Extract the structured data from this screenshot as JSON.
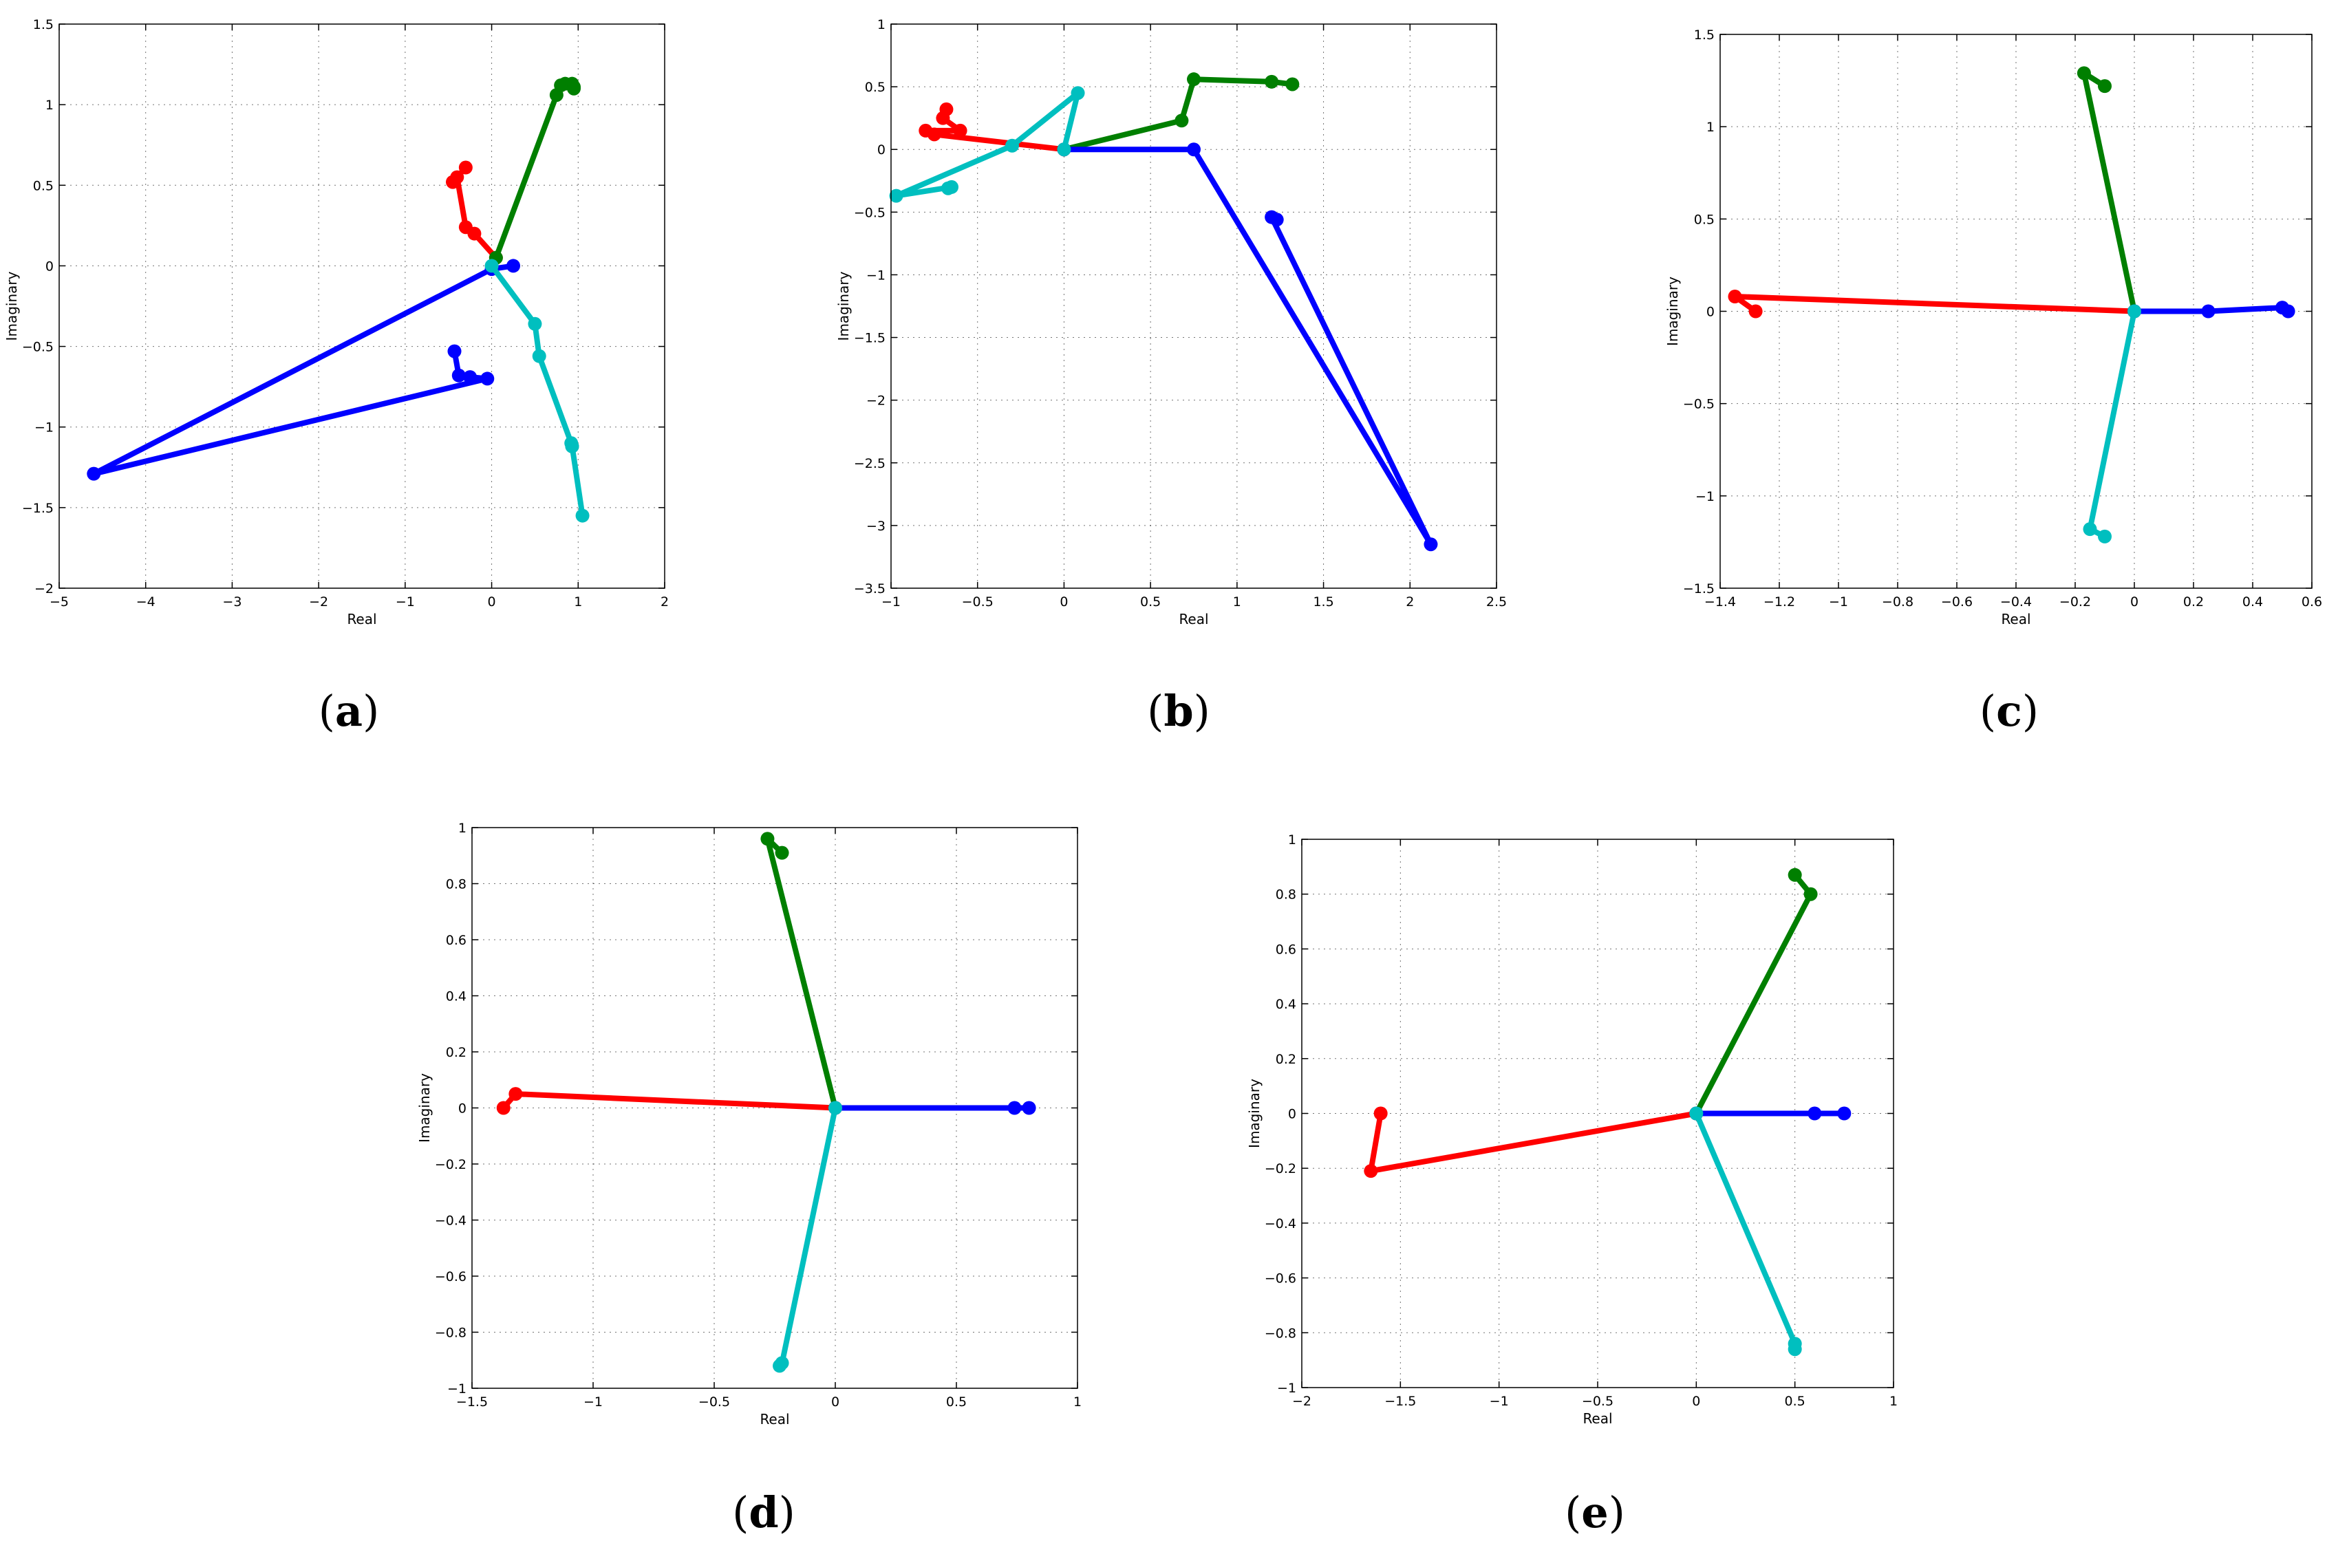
{
  "chart_data": [
    {
      "type": "line",
      "panel_label": "a",
      "xlabel": "Real",
      "ylabel": "Imaginary",
      "xlim": [
        -5,
        2
      ],
      "ylim": [
        -2,
        1.5
      ],
      "xticks": [
        -5,
        -4,
        -3,
        -2,
        -1,
        0,
        1,
        2
      ],
      "yticks": [
        -2,
        -1.5,
        -1,
        -0.5,
        0,
        0.5,
        1,
        1.5
      ],
      "xtick_labels": [
        "−5",
        "−4",
        "−3",
        "−2",
        "−1",
        "0",
        "1",
        "2"
      ],
      "ytick_labels": [
        "−2",
        "−1.5",
        "−1",
        "−0.5",
        "0",
        "0.5",
        "1",
        "1.5"
      ],
      "grid": true,
      "series": [
        {
          "name": "red",
          "color": "#ff0000",
          "x": [
            0.05,
            -0.2,
            -0.3,
            -0.4,
            -0.45,
            -0.3
          ],
          "y": [
            0.05,
            0.2,
            0.24,
            0.55,
            0.52,
            0.61
          ]
        },
        {
          "name": "green",
          "color": "#007f00",
          "x": [
            0.05,
            0.75,
            0.8,
            0.85,
            0.93,
            0.95,
            0.95
          ],
          "y": [
            0.05,
            1.06,
            1.12,
            1.13,
            1.13,
            1.11,
            1.1
          ]
        },
        {
          "name": "blue",
          "color": "#0000ff",
          "x": [
            0.25,
            0.0,
            -4.6,
            -0.05,
            -0.25,
            -0.38,
            -0.43
          ],
          "y": [
            0.0,
            -0.02,
            -1.29,
            -0.7,
            -0.69,
            -0.68,
            -0.53
          ]
        },
        {
          "name": "cyan",
          "color": "#00bfbf",
          "x": [
            0.0,
            0.5,
            0.55,
            0.92,
            0.93,
            1.05,
            0.93
          ],
          "y": [
            0.0,
            -0.36,
            -0.56,
            -1.1,
            -1.12,
            -1.55,
            -1.12
          ]
        }
      ]
    },
    {
      "type": "line",
      "panel_label": "b",
      "xlabel": "Real",
      "ylabel": "Imaginary",
      "xlim": [
        -1,
        2.5
      ],
      "ylim": [
        -3.5,
        1
      ],
      "xticks": [
        -1,
        -0.5,
        0,
        0.5,
        1,
        1.5,
        2,
        2.5
      ],
      "yticks": [
        -3.5,
        -3,
        -2.5,
        -2,
        -1.5,
        -1,
        -0.5,
        0,
        0.5,
        1
      ],
      "xtick_labels": [
        "−1",
        "−0.5",
        "0",
        "0.5",
        "1",
        "1.5",
        "2",
        "2.5"
      ],
      "ytick_labels": [
        "−3.5",
        "−3",
        "−2.5",
        "−2",
        "−1.5",
        "−1",
        "−0.5",
        "0",
        "0.5",
        "1"
      ],
      "grid": true,
      "series": [
        {
          "name": "red",
          "color": "#ff0000",
          "x": [
            0.0,
            -0.75,
            -0.8,
            -0.6,
            -0.7,
            -0.68
          ],
          "y": [
            0.0,
            0.12,
            0.15,
            0.15,
            0.25,
            0.32
          ]
        },
        {
          "name": "green",
          "color": "#007f00",
          "x": [
            0.0,
            0.68,
            0.75,
            1.2,
            1.32
          ],
          "y": [
            0.0,
            0.23,
            0.56,
            0.54,
            0.52
          ]
        },
        {
          "name": "blue",
          "color": "#0000ff",
          "x": [
            0.0,
            0.75,
            2.12,
            1.2,
            1.23
          ],
          "y": [
            0.0,
            0.0,
            -3.15,
            -0.54,
            -0.56
          ]
        },
        {
          "name": "cyan",
          "color": "#00bfbf",
          "x": [
            0.0,
            0.08,
            -0.3,
            -0.97,
            -0.65,
            -0.67
          ],
          "y": [
            0.0,
            0.45,
            0.03,
            -0.37,
            -0.3,
            -0.31
          ]
        }
      ]
    },
    {
      "type": "line",
      "panel_label": "c",
      "xlabel": "Real",
      "ylabel": "Imaginary",
      "xlim": [
        -1.4,
        0.6
      ],
      "ylim": [
        -1.5,
        1.5
      ],
      "xticks": [
        -1.4,
        -1.2,
        -1,
        -0.8,
        -0.6,
        -0.4,
        -0.2,
        0,
        0.2,
        0.4,
        0.6
      ],
      "yticks": [
        -1.5,
        -1,
        -0.5,
        0,
        0.5,
        1,
        1.5
      ],
      "xtick_labels": [
        "−1.4",
        "−1.2",
        "−1",
        "−0.8",
        "−0.6",
        "−0.4",
        "−0.2",
        "0",
        "0.2",
        "0.4",
        "0.6"
      ],
      "ytick_labels": [
        "−1.5",
        "−1",
        "−0.5",
        "0",
        "0.5",
        "1",
        "1.5"
      ],
      "grid": true,
      "series": [
        {
          "name": "red",
          "color": "#ff0000",
          "x": [
            0.0,
            -1.35,
            -1.28
          ],
          "y": [
            0.0,
            0.08,
            0.0
          ]
        },
        {
          "name": "green",
          "color": "#007f00",
          "x": [
            0.0,
            -0.17,
            -0.1
          ],
          "y": [
            0.0,
            1.29,
            1.22
          ]
        },
        {
          "name": "blue",
          "color": "#0000ff",
          "x": [
            0.0,
            0.25,
            0.5,
            0.52
          ],
          "y": [
            0.0,
            0.0,
            0.02,
            0.0
          ]
        },
        {
          "name": "cyan",
          "color": "#00bfbf",
          "x": [
            0.0,
            -0.15,
            -0.1
          ],
          "y": [
            0.0,
            -1.18,
            -1.22
          ]
        }
      ]
    },
    {
      "type": "line",
      "panel_label": "d",
      "xlabel": "Real",
      "ylabel": "Imaginary",
      "xlim": [
        -1.5,
        1
      ],
      "ylim": [
        -1,
        1
      ],
      "xticks": [
        -1.5,
        -1,
        -0.5,
        0,
        0.5,
        1
      ],
      "yticks": [
        -1,
        -0.8,
        -0.6,
        -0.4,
        -0.2,
        0,
        0.2,
        0.4,
        0.6,
        0.8,
        1
      ],
      "xtick_labels": [
        "−1.5",
        "−1",
        "−0.5",
        "0",
        "0.5",
        "1"
      ],
      "ytick_labels": [
        "−1",
        "−0.8",
        "−0.6",
        "−0.4",
        "−0.2",
        "0",
        "0.2",
        "0.4",
        "0.6",
        "0.8",
        "1"
      ],
      "grid": true,
      "series": [
        {
          "name": "red",
          "color": "#ff0000",
          "x": [
            0.0,
            -1.32,
            -1.37
          ],
          "y": [
            0.0,
            0.05,
            0.0
          ]
        },
        {
          "name": "green",
          "color": "#007f00",
          "x": [
            0.0,
            -0.28,
            -0.22
          ],
          "y": [
            0.0,
            0.96,
            0.91
          ]
        },
        {
          "name": "blue",
          "color": "#0000ff",
          "x": [
            0.0,
            0.74,
            0.8
          ],
          "y": [
            0.0,
            0.0,
            0.0
          ]
        },
        {
          "name": "cyan",
          "color": "#00bfbf",
          "x": [
            0.0,
            -0.22,
            -0.23
          ],
          "y": [
            0.0,
            -0.91,
            -0.92
          ]
        }
      ]
    },
    {
      "type": "line",
      "panel_label": "e",
      "xlabel": "Real",
      "ylabel": "Imaginary",
      "xlim": [
        -2,
        1
      ],
      "ylim": [
        -1,
        1
      ],
      "xticks": [
        -2,
        -1.5,
        -1,
        -0.5,
        0,
        0.5,
        1
      ],
      "yticks": [
        -1,
        -0.8,
        -0.6,
        -0.4,
        -0.2,
        0,
        0.2,
        0.4,
        0.6,
        0.8,
        1
      ],
      "xtick_labels": [
        "−2",
        "−1.5",
        "−1",
        "−0.5",
        "0",
        "0.5",
        "1"
      ],
      "ytick_labels": [
        "−1",
        "−0.8",
        "−0.6",
        "−0.4",
        "−0.2",
        "0",
        "0.2",
        "0.4",
        "0.6",
        "0.8",
        "1"
      ],
      "grid": true,
      "series": [
        {
          "name": "red",
          "color": "#ff0000",
          "x": [
            0.0,
            -1.65,
            -1.6
          ],
          "y": [
            0.0,
            -0.21,
            0.0
          ]
        },
        {
          "name": "green",
          "color": "#007f00",
          "x": [
            0.0,
            0.58,
            0.5
          ],
          "y": [
            0.0,
            0.8,
            0.87
          ]
        },
        {
          "name": "blue",
          "color": "#0000ff",
          "x": [
            0.0,
            0.6,
            0.75
          ],
          "y": [
            0.0,
            0.0,
            0.0
          ]
        },
        {
          "name": "cyan",
          "color": "#00bfbf",
          "x": [
            0.0,
            0.5,
            0.5
          ],
          "y": [
            0.0,
            -0.84,
            -0.86
          ]
        }
      ]
    }
  ]
}
